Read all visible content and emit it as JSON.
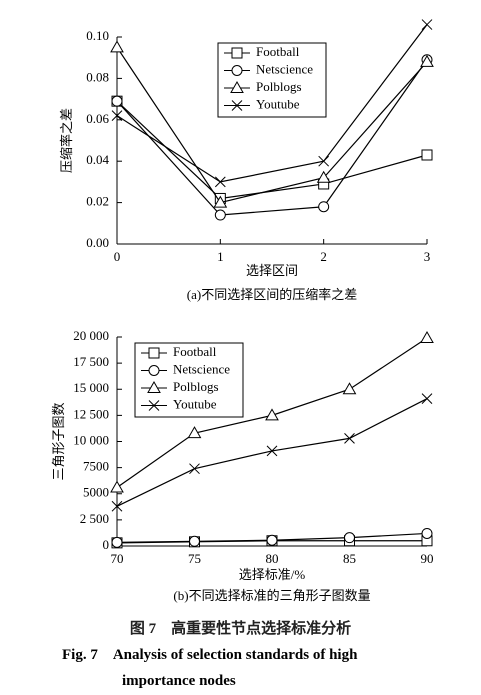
{
  "chart_data": [
    {
      "type": "line",
      "xlabel": "选择区间",
      "ylabel": "压缩率之差",
      "caption": "(a)不同选择区间的压缩率之差",
      "x": [
        0,
        1,
        2,
        3
      ],
      "xlim": [
        0,
        3
      ],
      "xticks": [
        0,
        1,
        2,
        3
      ],
      "ylim": [
        0,
        0.1
      ],
      "yticks": [
        {
          "value": 0,
          "label": "0.00"
        },
        {
          "value": 0.02,
          "label": "0.02"
        },
        {
          "value": 0.04,
          "label": "0.04"
        },
        {
          "value": 0.06,
          "label": "0.06"
        },
        {
          "value": 0.08,
          "label": "0.08"
        },
        {
          "value": 0.1,
          "label": "0.10"
        }
      ],
      "legend": "upper center",
      "series": [
        {
          "name": "Football",
          "color": "#000000",
          "marker": "square",
          "values": [
            0.069,
            0.022,
            0.029,
            0.043
          ]
        },
        {
          "name": "Netscience",
          "color": "#000000",
          "marker": "circle",
          "values": [
            0.069,
            0.014,
            0.018,
            0.089
          ]
        },
        {
          "name": "Polblogs",
          "color": "#000000",
          "marker": "triangle",
          "values": [
            0.095,
            0.02,
            0.032,
            0.088
          ]
        },
        {
          "name": "Youtube",
          "color": "#000000",
          "marker": "x",
          "values": [
            0.062,
            0.03,
            0.04,
            0.106
          ]
        }
      ]
    },
    {
      "type": "line",
      "xlabel": "选择标准/%",
      "ylabel": "三角形子图数",
      "caption": "(b)不同选择标准的三角形子图数量",
      "x": [
        70,
        75,
        80,
        85,
        90
      ],
      "xlim": [
        70,
        90
      ],
      "xticks": [
        70,
        75,
        80,
        85,
        90
      ],
      "ylim": [
        0,
        20000
      ],
      "yticks": [
        0,
        {
          "value": 2500,
          "label": "2 500"
        },
        5000,
        7500,
        {
          "value": 10000,
          "label": "10 000"
        },
        {
          "value": 12500,
          "label": "12 500"
        },
        {
          "value": 15000,
          "label": "15 000"
        },
        {
          "value": 17500,
          "label": "17 500"
        },
        {
          "value": 20000,
          "label": "20 000"
        }
      ],
      "legend": "upper left",
      "series": [
        {
          "name": "Football",
          "color": "#000000",
          "marker": "square",
          "values": [
            300,
            400,
            500,
            500,
            500
          ]
        },
        {
          "name": "Netscience",
          "color": "#000000",
          "marker": "circle",
          "values": [
            350,
            450,
            550,
            800,
            1200
          ]
        },
        {
          "name": "Polblogs",
          "color": "#000000",
          "marker": "triangle",
          "values": [
            5600,
            10800,
            12500,
            15000,
            19900
          ]
        },
        {
          "name": "Youtube",
          "color": "#000000",
          "marker": "x",
          "values": [
            3800,
            7400,
            9100,
            10300,
            14100
          ]
        }
      ]
    }
  ],
  "figure": {
    "caption_cn": "图 7　高重要性节点选择标准分析",
    "caption_en": "Fig. 7　Analysis of selection standards of high importance nodes"
  }
}
